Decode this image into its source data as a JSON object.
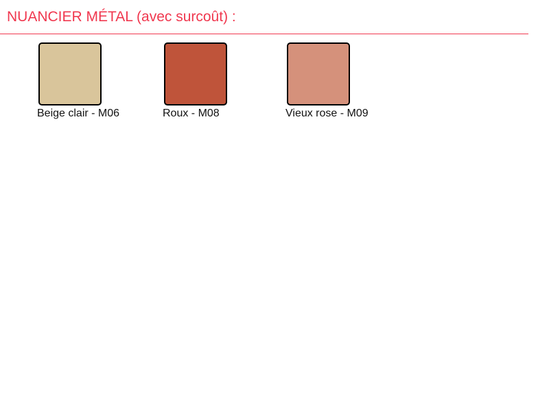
{
  "title": "NUANCIER MÉTAL (avec surcoût) :",
  "accent_color": "#f0384f",
  "swatches": [
    {
      "label": "Beige clair - M06",
      "color": "#d9c59b"
    },
    {
      "label": "Roux - M08",
      "color": "#bf543a"
    },
    {
      "label": "Vieux rose - M09",
      "color": "#d5917b"
    }
  ]
}
